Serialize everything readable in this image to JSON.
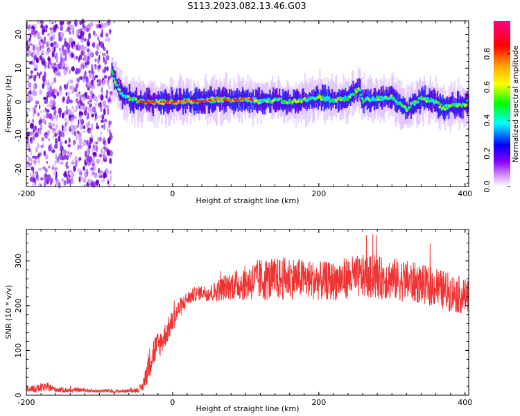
{
  "title": "S113.2023.082.13.46.G03",
  "colors": {
    "snr_line": "#ee3333",
    "spectrogram_dark": "#6600cc",
    "spectrogram_faint": "#cc99ff",
    "axis": "#000000"
  },
  "colorbar": {
    "label": "Normalized spectral amplitude",
    "ticks": [
      "0.0",
      "0.2",
      "0.4",
      "0.6",
      "0.8"
    ],
    "tick_values": [
      0.0,
      0.2,
      0.4,
      0.6,
      0.8
    ],
    "range": [
      0,
      1
    ]
  },
  "chart_data": [
    {
      "type": "heatmap",
      "title": "S113.2023.082.13.46.G03",
      "xlabel": "Height of straight line (km)",
      "ylabel": "Frequency (Hz)",
      "xlim": [
        -200,
        405
      ],
      "ylim": [
        -25,
        24
      ],
      "xticks": [
        -200,
        0,
        200,
        400
      ],
      "xtick_labels": [
        "-200",
        "0",
        "200",
        "400"
      ],
      "yticks": [
        20,
        10,
        0,
        -10,
        -20
      ],
      "ytick_labels": [
        "20",
        "10",
        "0",
        "-10",
        "-20"
      ],
      "noise_region": [
        -200,
        -83
      ],
      "ridge": {
        "x": [
          -83,
          -78,
          -72,
          -66,
          -60,
          -50,
          -40,
          -20,
          0,
          20,
          40,
          60,
          80,
          100,
          120,
          140,
          160,
          180,
          200,
          220,
          240,
          255,
          260,
          280,
          300,
          310,
          320,
          340,
          360,
          370,
          380,
          400,
          405
        ],
        "y": [
          9,
          6,
          3,
          1.5,
          1,
          0.5,
          0,
          0,
          0,
          0.3,
          0.2,
          0.8,
          0.5,
          1,
          0.2,
          0.5,
          0,
          0.5,
          1.5,
          0.5,
          1,
          4,
          0.5,
          1,
          1.5,
          -0.5,
          -2,
          1,
          0,
          -2,
          -1,
          -1,
          0.5
        ]
      },
      "red_band": [
        -45,
        115
      ]
    },
    {
      "type": "line",
      "xlabel": "Height of straight line (km)",
      "ylabel": "SNR (10 * v/v)",
      "xlim": [
        -200,
        405
      ],
      "ylim": [
        0,
        370
      ],
      "xticks": [
        -200,
        0,
        200,
        400
      ],
      "xtick_labels": [
        "-200",
        "0",
        "200",
        "400"
      ],
      "yticks": [
        0,
        100,
        200,
        300
      ],
      "ytick_labels": [
        "0",
        "100",
        "200",
        "300"
      ],
      "series": [
        {
          "x": [
            -200,
            -190,
            -180,
            -170,
            -160,
            -150,
            -140,
            -130,
            -120,
            -110,
            -100,
            -90,
            -80,
            -70,
            -60,
            -50,
            -45,
            -40,
            -35,
            -30,
            -25,
            -20,
            -15,
            -10,
            -5,
            0,
            5,
            10,
            15,
            20,
            25,
            30,
            40,
            50,
            60,
            70,
            80,
            90,
            100,
            110,
            120,
            140,
            160,
            180,
            200,
            220,
            240,
            260,
            280,
            300,
            320,
            340,
            360,
            380,
            400,
            405
          ],
          "values": [
            12,
            14,
            16,
            18,
            13,
            12,
            10,
            12,
            11,
            10,
            9,
            10,
            8,
            9,
            10,
            11,
            14,
            20,
            55,
            80,
            100,
            110,
            120,
            135,
            150,
            165,
            180,
            195,
            205,
            215,
            220,
            225,
            230,
            228,
            232,
            240,
            245,
            248,
            250,
            255,
            258,
            258,
            262,
            260,
            255,
            255,
            262,
            265,
            262,
            260,
            255,
            248,
            240,
            230,
            220,
            225
          ],
          "spread": [
            10,
            10,
            12,
            12,
            8,
            8,
            6,
            6,
            6,
            5,
            5,
            5,
            5,
            5,
            5,
            6,
            10,
            14,
            40,
            45,
            45,
            40,
            35,
            35,
            35,
            30,
            30,
            28,
            25,
            22,
            20,
            20,
            20,
            25,
            30,
            35,
            40,
            45,
            50,
            55,
            60,
            60,
            60,
            55,
            55,
            55,
            60,
            60,
            60,
            60,
            60,
            55,
            55,
            55,
            50,
            45
          ]
        }
      ]
    }
  ]
}
